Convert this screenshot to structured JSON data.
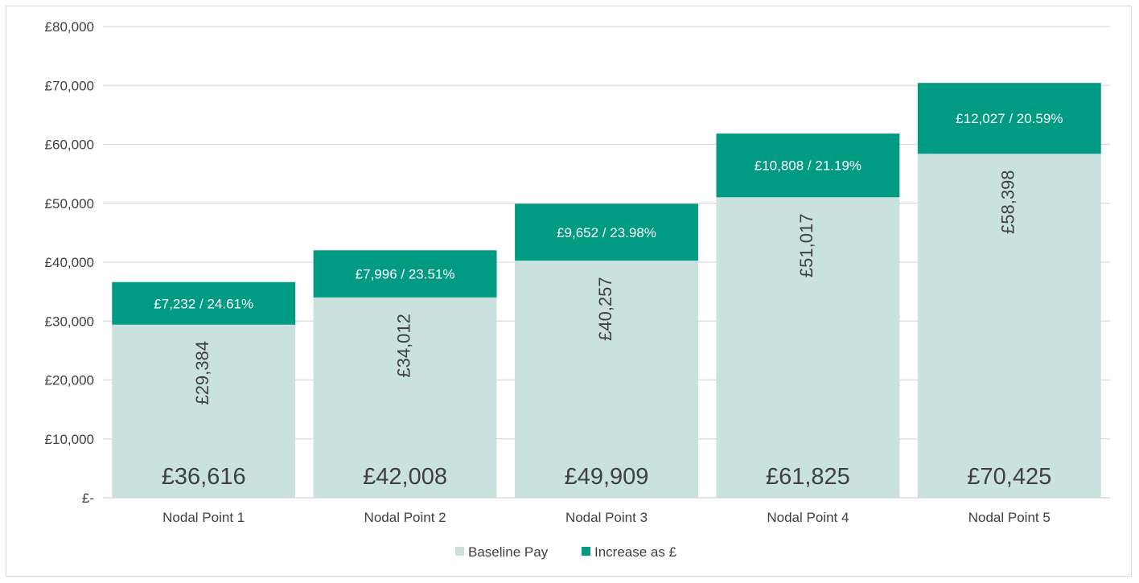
{
  "chart_data": {
    "type": "bar",
    "stacked": true,
    "categories": [
      "Nodal Point 1",
      "Nodal Point 2",
      "Nodal Point 3",
      "Nodal Point 4",
      "Nodal Point 5"
    ],
    "series": [
      {
        "name": "Baseline Pay",
        "color": "#c9e2dd",
        "values": [
          29384,
          34012,
          40257,
          51017,
          58398
        ],
        "labels": [
          "£29,384",
          "£34,012",
          "£40,257",
          "£51,017",
          "£58,398"
        ]
      },
      {
        "name": "Increase as £",
        "color": "#009b82",
        "values": [
          7232,
          7996,
          9652,
          10808,
          12027
        ],
        "labels": [
          "£7,232 / 24.61%",
          "£7,996 / 23.51%",
          "£9,652 / 23.98%",
          "£10,808 / 21.19%",
          "£12,027 / 20.59%"
        ]
      }
    ],
    "totals": [
      "£36,616",
      "£42,008",
      "£49,909",
      "£61,825",
      "£70,425"
    ],
    "ylim": [
      0,
      80000
    ],
    "yticks": [
      0,
      10000,
      20000,
      30000,
      40000,
      50000,
      60000,
      70000,
      80000
    ],
    "ytick_labels": [
      "£-",
      "£10,000",
      "£20,000",
      "£30,000",
      "£40,000",
      "£50,000",
      "£60,000",
      "£70,000",
      "£80,000"
    ],
    "grid": true,
    "legend": "bottom",
    "title": "",
    "xlabel": "",
    "ylabel": ""
  }
}
